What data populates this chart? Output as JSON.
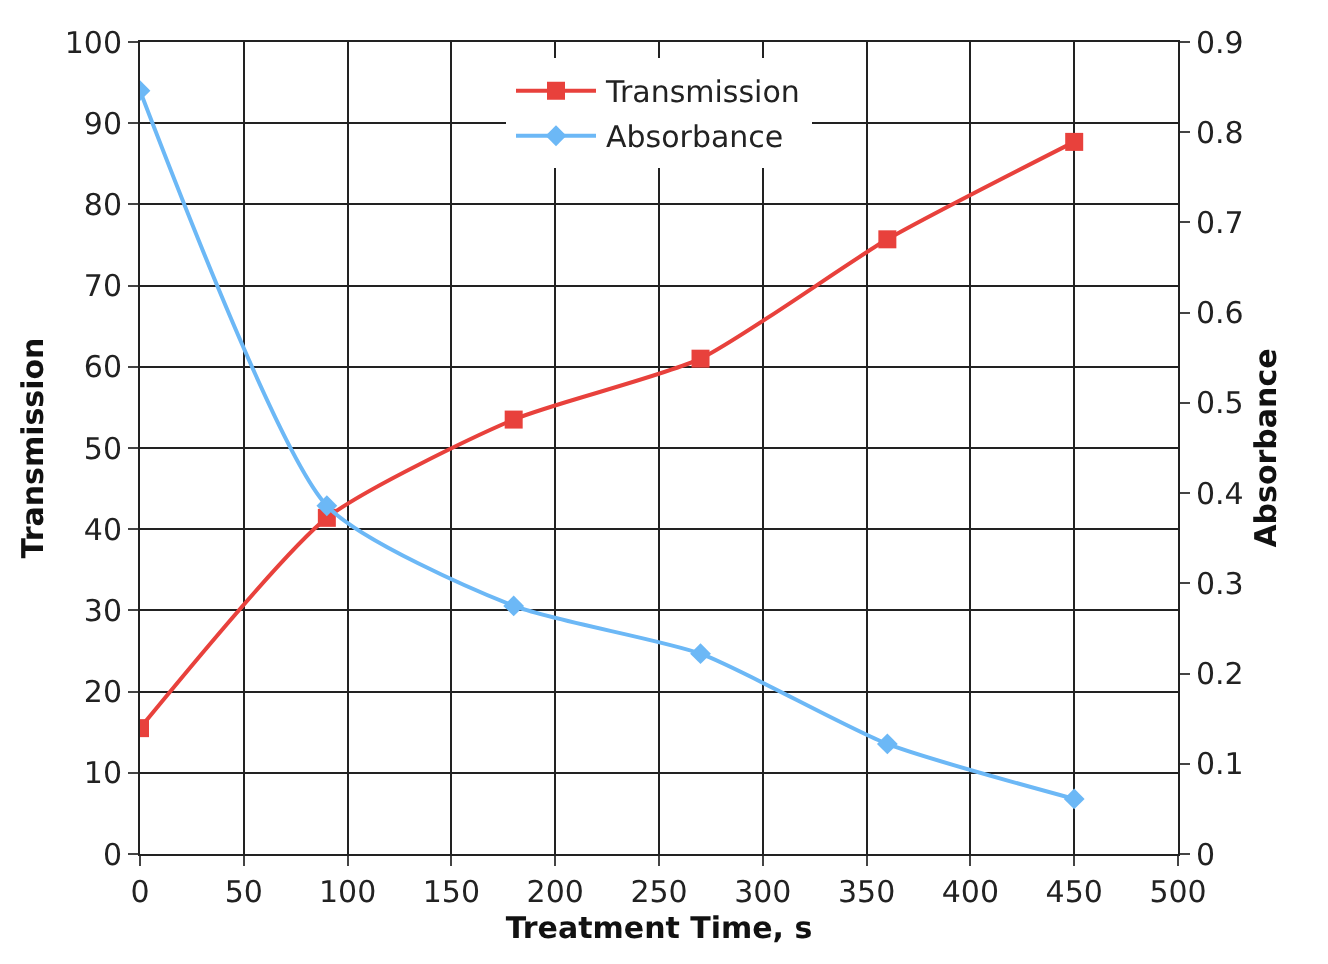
{
  "chart_data": {
    "type": "line",
    "xlabel": "Treatment Time, s",
    "ylabel": "Transmission",
    "y2label": "Absorbance",
    "x": [
      0,
      90,
      180,
      270,
      360,
      450
    ],
    "series": [
      {
        "name": "Transmission",
        "color": "#e8413c",
        "marker": "square",
        "values": [
          15.5,
          41.4,
          53.5,
          61,
          75.7,
          87.7
        ]
      },
      {
        "name": "Absorbance",
        "color": "#6cb8f6",
        "marker": "diamond",
        "axis": "y2",
        "values": [
          0.846,
          0.386,
          0.275,
          0.222,
          0.122,
          0.061
        ]
      }
    ],
    "xlim": [
      0,
      500
    ],
    "xticks": [
      0,
      50,
      100,
      150,
      200,
      250,
      300,
      350,
      400,
      450,
      500
    ],
    "ylim": [
      0,
      100
    ],
    "yticks": [
      0,
      10,
      20,
      30,
      40,
      50,
      60,
      70,
      80,
      90,
      100
    ],
    "y2lim": [
      0,
      0.9
    ],
    "y2ticks": [
      0,
      0.1,
      0.2,
      0.3,
      0.4,
      0.5,
      0.6,
      0.7,
      0.8,
      0.9
    ],
    "grid": true,
    "legend": "top",
    "line_style": "solid"
  }
}
